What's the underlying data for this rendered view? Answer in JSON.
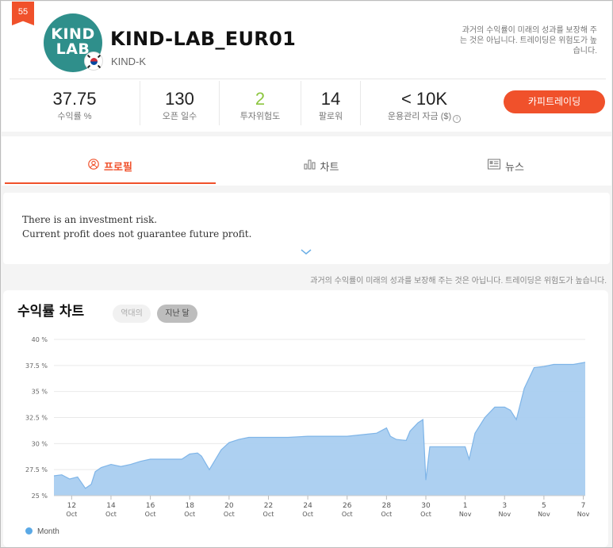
{
  "header": {
    "rank": "55",
    "logo_text": [
      "KIND",
      "LAB"
    ],
    "strategy_name": "KIND-LAB_EUR01",
    "provider": "KIND-K",
    "disclaimer": "과거의 수익률이 미래의 성과를 보장해 주는 것은 아닙니다. 트레이딩은 위험도가 높습니다.",
    "stats": [
      {
        "value": "37.75",
        "label": "수익률 %"
      },
      {
        "value": "130",
        "label": "오픈 일수"
      },
      {
        "value": "2",
        "label": "투자위험도"
      },
      {
        "value": "14",
        "label": "팔로워"
      },
      {
        "value": "< 10K",
        "label": "운용관리 자금 ($)"
      }
    ],
    "copy_button": "카피트레이딩"
  },
  "tabs": [
    {
      "label": "프로필",
      "icon": "user-icon",
      "active": true
    },
    {
      "label": "차트",
      "icon": "bar-chart-icon",
      "active": false
    },
    {
      "label": "뉴스",
      "icon": "newspaper-icon",
      "active": false
    }
  ],
  "notice": {
    "line1": "There is an investment risk.",
    "line2": "Current profit does not guarantee future profit."
  },
  "disclaimer_mid": "과거의 수익률이 미래의 성과를 보장해 주는 것은 아닙니다. 트레이딩은 위험도가 높습니다.",
  "chart": {
    "title": "수익률 차트",
    "pills": [
      {
        "label": "역대의",
        "active": false
      },
      {
        "label": "지난 달",
        "active": true
      }
    ],
    "legend": "Month",
    "colors": {
      "fill": "#a9cdf0",
      "line": "#7fb5e8",
      "accent": "#f0512b",
      "risk": "#8cc63f"
    }
  },
  "chart_data": {
    "type": "area",
    "ylim": [
      25,
      40
    ],
    "y_ticks": [
      "25 %",
      "27.5 %",
      "30 %",
      "32.5 %",
      "35 %",
      "37.5 %",
      "40 %"
    ],
    "x_ticks": [
      {
        "day": "12",
        "month": "Oct"
      },
      {
        "day": "14",
        "month": "Oct"
      },
      {
        "day": "16",
        "month": "Oct"
      },
      {
        "day": "18",
        "month": "Oct"
      },
      {
        "day": "20",
        "month": "Oct"
      },
      {
        "day": "22",
        "month": "Oct"
      },
      {
        "day": "24",
        "month": "Oct"
      },
      {
        "day": "26",
        "month": "Oct"
      },
      {
        "day": "28",
        "month": "Oct"
      },
      {
        "day": "30",
        "month": "Oct"
      },
      {
        "day": "1",
        "month": "Nov"
      },
      {
        "day": "3",
        "month": "Nov"
      },
      {
        "day": "5",
        "month": "Nov"
      },
      {
        "day": "7",
        "month": "Nov"
      }
    ],
    "series": [
      {
        "x": [
          11.1,
          11.5,
          11.9,
          12.3,
          12.7,
          13.0,
          13.2,
          13.5,
          14.0,
          14.5,
          15.0,
          15.5,
          16.0,
          17.0,
          17.6,
          18.0,
          18.4,
          18.6,
          19.0,
          19.6,
          20.0,
          20.5,
          21.0,
          22.0,
          23.0,
          24.0,
          25.0,
          26.0,
          27.0,
          27.5,
          28.0,
          28.2,
          28.5,
          29.0,
          29.2,
          29.6,
          29.85,
          30.0,
          30.2,
          31.0,
          32.0,
          32.2,
          32.5,
          33.0,
          33.5,
          34.0,
          34.3,
          34.6,
          35.0,
          35.5,
          36.0,
          36.5,
          37.0,
          37.5,
          38.1
        ],
        "y": [
          26.9,
          27.0,
          26.6,
          26.8,
          25.7,
          26.1,
          27.3,
          27.7,
          28.0,
          27.8,
          28.0,
          28.3,
          28.5,
          28.5,
          28.5,
          29.0,
          29.1,
          28.8,
          27.5,
          29.4,
          30.1,
          30.4,
          30.6,
          30.6,
          30.6,
          30.7,
          30.7,
          30.7,
          30.9,
          31.0,
          31.5,
          30.7,
          30.4,
          30.3,
          31.2,
          32.0,
          32.3,
          26.5,
          29.7,
          29.7,
          29.7,
          28.5,
          31.0,
          32.5,
          33.5,
          33.5,
          33.2,
          32.3,
          35.3,
          37.3,
          37.4,
          37.6,
          37.6,
          37.6,
          37.8
        ]
      }
    ]
  }
}
